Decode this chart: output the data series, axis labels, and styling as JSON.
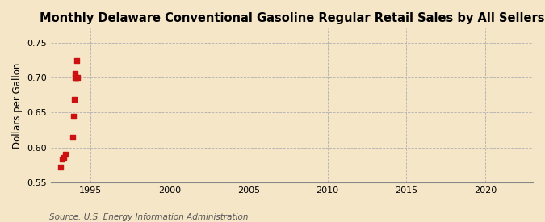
{
  "title": "Monthly Delaware Conventional Gasoline Regular Retail Sales by All Sellers",
  "ylabel": "Dollars per Gallon",
  "source": "Source: U.S. Energy Information Administration",
  "background_color": "#f5e6c8",
  "plot_background_color": "#f5e6c8",
  "xlim": [
    1992.5,
    2023
  ],
  "ylim": [
    0.55,
    0.77
  ],
  "xticks": [
    1995,
    2000,
    2005,
    2010,
    2015,
    2020
  ],
  "yticks": [
    0.55,
    0.6,
    0.65,
    0.7,
    0.75
  ],
  "data_x": [
    1993.1,
    1993.2,
    1993.3,
    1993.4,
    1993.85,
    1993.9,
    1993.95,
    1994.0,
    1994.05,
    1994.1,
    1994.15,
    1994.2
  ],
  "data_y": [
    0.572,
    0.583,
    0.586,
    0.59,
    0.615,
    0.644,
    0.669,
    0.7,
    0.706,
    0.7,
    0.724,
    0.7
  ],
  "marker_color": "#cc1111",
  "marker_size": 16,
  "grid_color": "#b0b0b0",
  "grid_linestyle": "--",
  "title_fontsize": 10.5,
  "label_fontsize": 8.5,
  "tick_fontsize": 8,
  "source_fontsize": 7.5
}
